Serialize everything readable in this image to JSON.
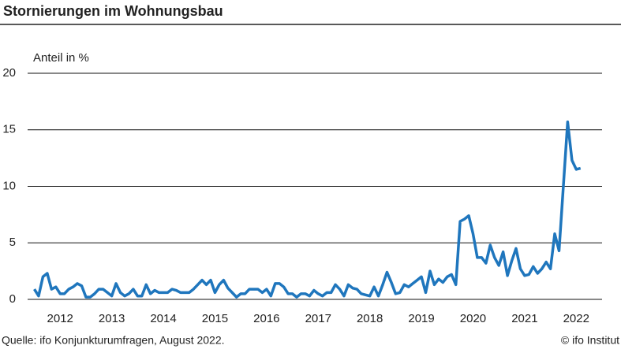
{
  "chart_data": {
    "type": "line",
    "title": "Stornierungen im Wohnungsbau",
    "y_label": "Anteil in %",
    "source": "Quelle: ifo Konjunkturumfragen, August 2022.",
    "copyright": "© ifo Institut",
    "x": [
      2012,
      2012.083,
      2012.167,
      2012.25,
      2012.333,
      2012.417,
      2012.5,
      2012.583,
      2012.667,
      2012.75,
      2012.833,
      2012.917,
      2013,
      2013.083,
      2013.167,
      2013.25,
      2013.333,
      2013.417,
      2013.5,
      2013.583,
      2013.667,
      2013.75,
      2013.833,
      2013.917,
      2014,
      2014.083,
      2014.167,
      2014.25,
      2014.333,
      2014.417,
      2014.5,
      2014.583,
      2014.667,
      2014.75,
      2014.833,
      2014.917,
      2015,
      2015.083,
      2015.167,
      2015.25,
      2015.333,
      2015.417,
      2015.5,
      2015.583,
      2015.667,
      2015.75,
      2015.833,
      2015.917,
      2016,
      2016.083,
      2016.167,
      2016.25,
      2016.333,
      2016.417,
      2016.5,
      2016.583,
      2016.667,
      2016.75,
      2016.833,
      2016.917,
      2017,
      2017.083,
      2017.167,
      2017.25,
      2017.333,
      2017.417,
      2017.5,
      2017.583,
      2017.667,
      2017.75,
      2017.833,
      2017.917,
      2018,
      2018.083,
      2018.167,
      2018.25,
      2018.333,
      2018.417,
      2018.5,
      2018.583,
      2018.667,
      2018.75,
      2018.833,
      2018.917,
      2019,
      2019.083,
      2019.167,
      2019.25,
      2019.333,
      2019.417,
      2019.5,
      2019.583,
      2019.667,
      2019.75,
      2019.833,
      2019.917,
      2020,
      2020.083,
      2020.167,
      2020.25,
      2020.333,
      2020.417,
      2020.5,
      2020.583,
      2020.667,
      2020.75,
      2020.833,
      2020.917,
      2021,
      2021.083,
      2021.167,
      2021.25,
      2021.333,
      2021.417,
      2021.5,
      2021.583,
      2021.667,
      2021.75,
      2021.833,
      2021.917,
      2022,
      2022.083,
      2022.167,
      2022.25,
      2022.333,
      2022.417,
      2022.5,
      2022.583
    ],
    "series": [
      {
        "color": "#1f76bd",
        "values": [
          0.9,
          0.3,
          2.0,
          2.3,
          0.9,
          1.1,
          0.5,
          0.5,
          0.9,
          1.1,
          1.4,
          1.2,
          0.2,
          0.2,
          0.5,
          0.9,
          0.9,
          0.6,
          0.3,
          1.4,
          0.6,
          0.3,
          0.5,
          0.9,
          0.3,
          0.3,
          1.3,
          0.5,
          0.8,
          0.6,
          0.6,
          0.6,
          0.9,
          0.8,
          0.6,
          0.6,
          0.6,
          0.9,
          1.3,
          1.7,
          1.3,
          1.7,
          0.6,
          1.3,
          1.7,
          1.0,
          0.6,
          0.2,
          0.5,
          0.5,
          0.9,
          0.9,
          0.9,
          0.6,
          0.9,
          0.3,
          1.4,
          1.4,
          1.1,
          0.5,
          0.5,
          0.2,
          0.5,
          0.5,
          0.3,
          0.8,
          0.5,
          0.3,
          0.6,
          0.6,
          1.3,
          0.9,
          0.3,
          1.3,
          1.0,
          0.9,
          0.5,
          0.4,
          0.3,
          1.1,
          0.3,
          1.3,
          2.4,
          1.5,
          0.5,
          0.6,
          1.3,
          1.1,
          1.4,
          1.7,
          2.0,
          0.6,
          2.5,
          1.3,
          1.8,
          1.5,
          2.0,
          2.2,
          1.3,
          6.9,
          7.1,
          7.4,
          5.8,
          3.7,
          3.7,
          3.2,
          4.8,
          3.7,
          3.0,
          4.2,
          2.1,
          3.4,
          4.5,
          2.7,
          2.1,
          2.2,
          2.9,
          2.3,
          2.7,
          3.3,
          2.7,
          5.8,
          4.3,
          10.0,
          15.7,
          12.3,
          11.5,
          11.6
        ]
      }
    ],
    "xlim": [
      2011.87,
      2023
    ],
    "xticks": [
      {
        "value": 2012.5,
        "label": "2012"
      },
      {
        "value": 2013.5,
        "label": "2013"
      },
      {
        "value": 2014.5,
        "label": "2014"
      },
      {
        "value": 2015.5,
        "label": "2015"
      },
      {
        "value": 2016.5,
        "label": "2016"
      },
      {
        "value": 2017.5,
        "label": "2017"
      },
      {
        "value": 2018.5,
        "label": "2018"
      },
      {
        "value": 2019.5,
        "label": "2019"
      },
      {
        "value": 2020.5,
        "label": "2020"
      },
      {
        "value": 2021.5,
        "label": "2021"
      },
      {
        "value": 2022.5,
        "label": "2022"
      }
    ],
    "ylim": [
      0,
      20
    ],
    "yticks": [
      0,
      5,
      10,
      15,
      20
    ],
    "grid": true
  }
}
